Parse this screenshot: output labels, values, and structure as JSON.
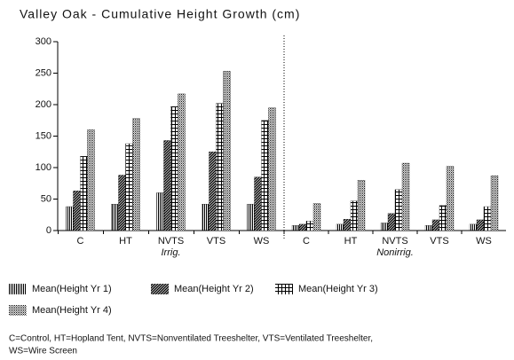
{
  "chart_data": {
    "type": "bar",
    "title": "Valley Oak - Cumulative Height Growth (cm)",
    "categories": [
      "C",
      "HT",
      "NVTS",
      "VTS",
      "WS",
      "C",
      "HT",
      "NVTS",
      "VTS",
      "WS"
    ],
    "group_labels": [
      "Irrig.",
      "Nonirrig."
    ],
    "series": [
      {
        "name": "Mean(Height Yr 1)",
        "color": "#000000",
        "pattern": "vertical",
        "values": [
          38,
          42,
          60,
          42,
          42,
          8,
          10,
          12,
          8,
          10
        ]
      },
      {
        "name": "Mean(Height Yr 2)",
        "color": "#000000",
        "pattern": "diagonal",
        "values": [
          63,
          88,
          143,
          125,
          85,
          10,
          18,
          27,
          17,
          17
        ]
      },
      {
        "name": "Mean(Height Yr 3)",
        "color": "#000000",
        "pattern": "grid",
        "values": [
          118,
          138,
          197,
          202,
          175,
          15,
          47,
          65,
          40,
          38
        ]
      },
      {
        "name": "Mean(Height Yr 4)",
        "color": "#000000",
        "pattern": "dots",
        "values": [
          160,
          178,
          217,
          253,
          195,
          43,
          80,
          107,
          102,
          87
        ]
      }
    ],
    "ylim": [
      0,
      300
    ],
    "yticks": [
      0,
      50,
      100,
      150,
      200,
      250,
      300
    ],
    "note": [
      "C=Control, HT=Hopland Tent, NVTS=Nonventilated Treeshelter, VTS=Ventilated Treeshelter,",
      "WS=Wire Screen"
    ]
  }
}
